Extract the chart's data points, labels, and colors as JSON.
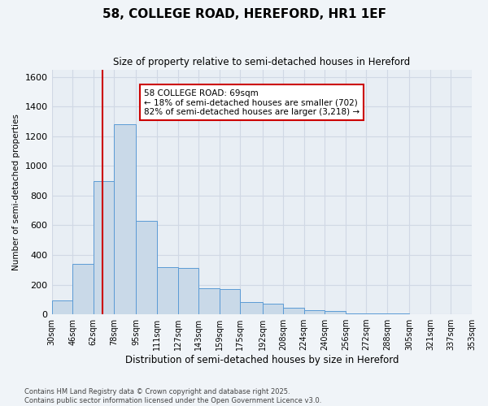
{
  "title": "58, COLLEGE ROAD, HEREFORD, HR1 1EF",
  "subtitle": "Size of property relative to semi-detached houses in Hereford",
  "xlabel": "Distribution of semi-detached houses by size in Hereford",
  "ylabel": "Number of semi-detached properties",
  "annotation_title": "58 COLLEGE ROAD: 69sqm",
  "annotation_line1": "← 18% of semi-detached houses are smaller (702)",
  "annotation_line2": "82% of semi-detached houses are larger (3,218) →",
  "property_size": 69,
  "bin_edges": [
    30,
    46,
    62,
    78,
    95,
    111,
    127,
    143,
    159,
    175,
    192,
    208,
    224,
    240,
    256,
    272,
    288,
    305,
    321,
    337,
    353
  ],
  "bin_labels": [
    "30sqm",
    "46sqm",
    "62sqm",
    "78sqm",
    "95sqm",
    "111sqm",
    "127sqm",
    "143sqm",
    "159sqm",
    "175sqm",
    "192sqm",
    "208sqm",
    "224sqm",
    "240sqm",
    "256sqm",
    "272sqm",
    "288sqm",
    "305sqm",
    "321sqm",
    "337sqm",
    "353sqm"
  ],
  "bar_heights": [
    95,
    340,
    900,
    1280,
    630,
    320,
    310,
    175,
    170,
    80,
    70,
    45,
    30,
    20,
    7,
    5,
    6,
    3,
    1,
    2
  ],
  "bar_color": "#c9d9e8",
  "bar_edge_color": "#5b9bd5",
  "vline_x": 69,
  "vline_color": "#cc0000",
  "ylim": [
    0,
    1650
  ],
  "yticks": [
    0,
    200,
    400,
    600,
    800,
    1000,
    1200,
    1400,
    1600
  ],
  "grid_color": "#d0d8e4",
  "background_color": "#e8eef4",
  "fig_background_color": "#f0f4f8",
  "annotation_box_color": "#ffffff",
  "annotation_box_edge": "#cc0000",
  "footer_line1": "Contains HM Land Registry data © Crown copyright and database right 2025.",
  "footer_line2": "Contains public sector information licensed under the Open Government Licence v3.0."
}
